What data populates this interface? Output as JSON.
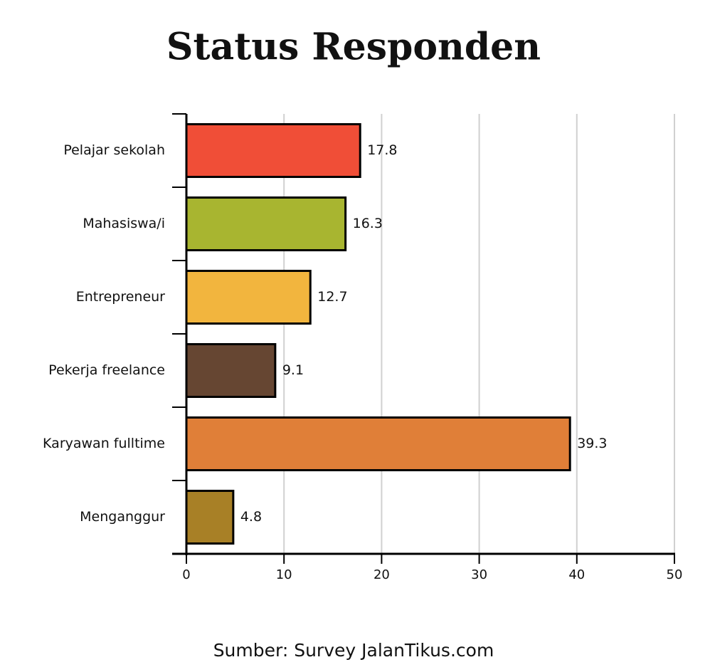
{
  "chart_data": {
    "type": "bar",
    "orientation": "horizontal",
    "title": "Status Responden",
    "categories": [
      "Pelajar sekolah",
      "Mahasiswa/i",
      "Entrepreneur",
      "Pekerja freelance",
      "Karyawan fulltime",
      "Menganggur"
    ],
    "values": [
      17.8,
      16.3,
      12.7,
      9.1,
      39.3,
      4.8
    ],
    "colors": [
      "#f04e37",
      "#a8b530",
      "#f2b53e",
      "#664632",
      "#e07f38",
      "#a88026"
    ],
    "xlim": [
      0,
      50
    ],
    "xticks": [
      0,
      10,
      20,
      30,
      40,
      50
    ],
    "grid": true,
    "source": "Sumber: Survey JalanTikus.com"
  }
}
